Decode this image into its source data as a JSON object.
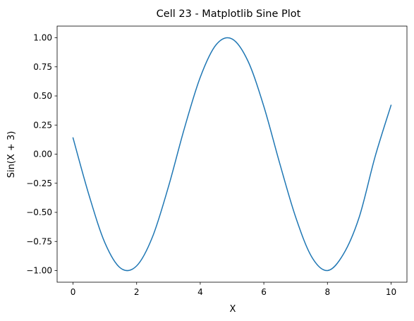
{
  "chart_data": {
    "type": "line",
    "title": "Cell 23 - Matplotlib Sine Plot",
    "xlabel": "X",
    "ylabel": "Sin(X + 3)",
    "xlim": [
      -0.5,
      10.5
    ],
    "ylim": [
      -1.1,
      1.1
    ],
    "x_ticks": [
      0,
      2,
      4,
      6,
      8,
      10
    ],
    "x_tick_labels": [
      "0",
      "2",
      "4",
      "6",
      "8",
      "10"
    ],
    "y_ticks": [
      -1.0,
      -0.75,
      -0.5,
      -0.25,
      0.0,
      0.25,
      0.5,
      0.75,
      1.0
    ],
    "y_tick_labels": [
      "−1.00",
      "−0.75",
      "−0.50",
      "−0.25",
      "0.00",
      "0.25",
      "0.50",
      "0.75",
      "1.00"
    ],
    "grid": false,
    "series": [
      {
        "x": [
          0,
          0.5,
          1,
          1.5,
          2,
          2.5,
          3,
          3.5,
          4,
          4.5,
          5,
          5.5,
          6,
          6.5,
          7,
          7.5,
          8,
          8.5,
          9,
          9.5,
          10
        ],
        "values": [
          0.14,
          -0.35,
          -0.76,
          -0.98,
          -0.96,
          -0.71,
          -0.28,
          0.22,
          0.66,
          0.94,
          0.99,
          0.8,
          0.41,
          -0.08,
          -0.54,
          -0.88,
          -1.0,
          -0.86,
          -0.54,
          -0.02,
          0.42
        ],
        "color": "#1f77b4"
      }
    ]
  }
}
